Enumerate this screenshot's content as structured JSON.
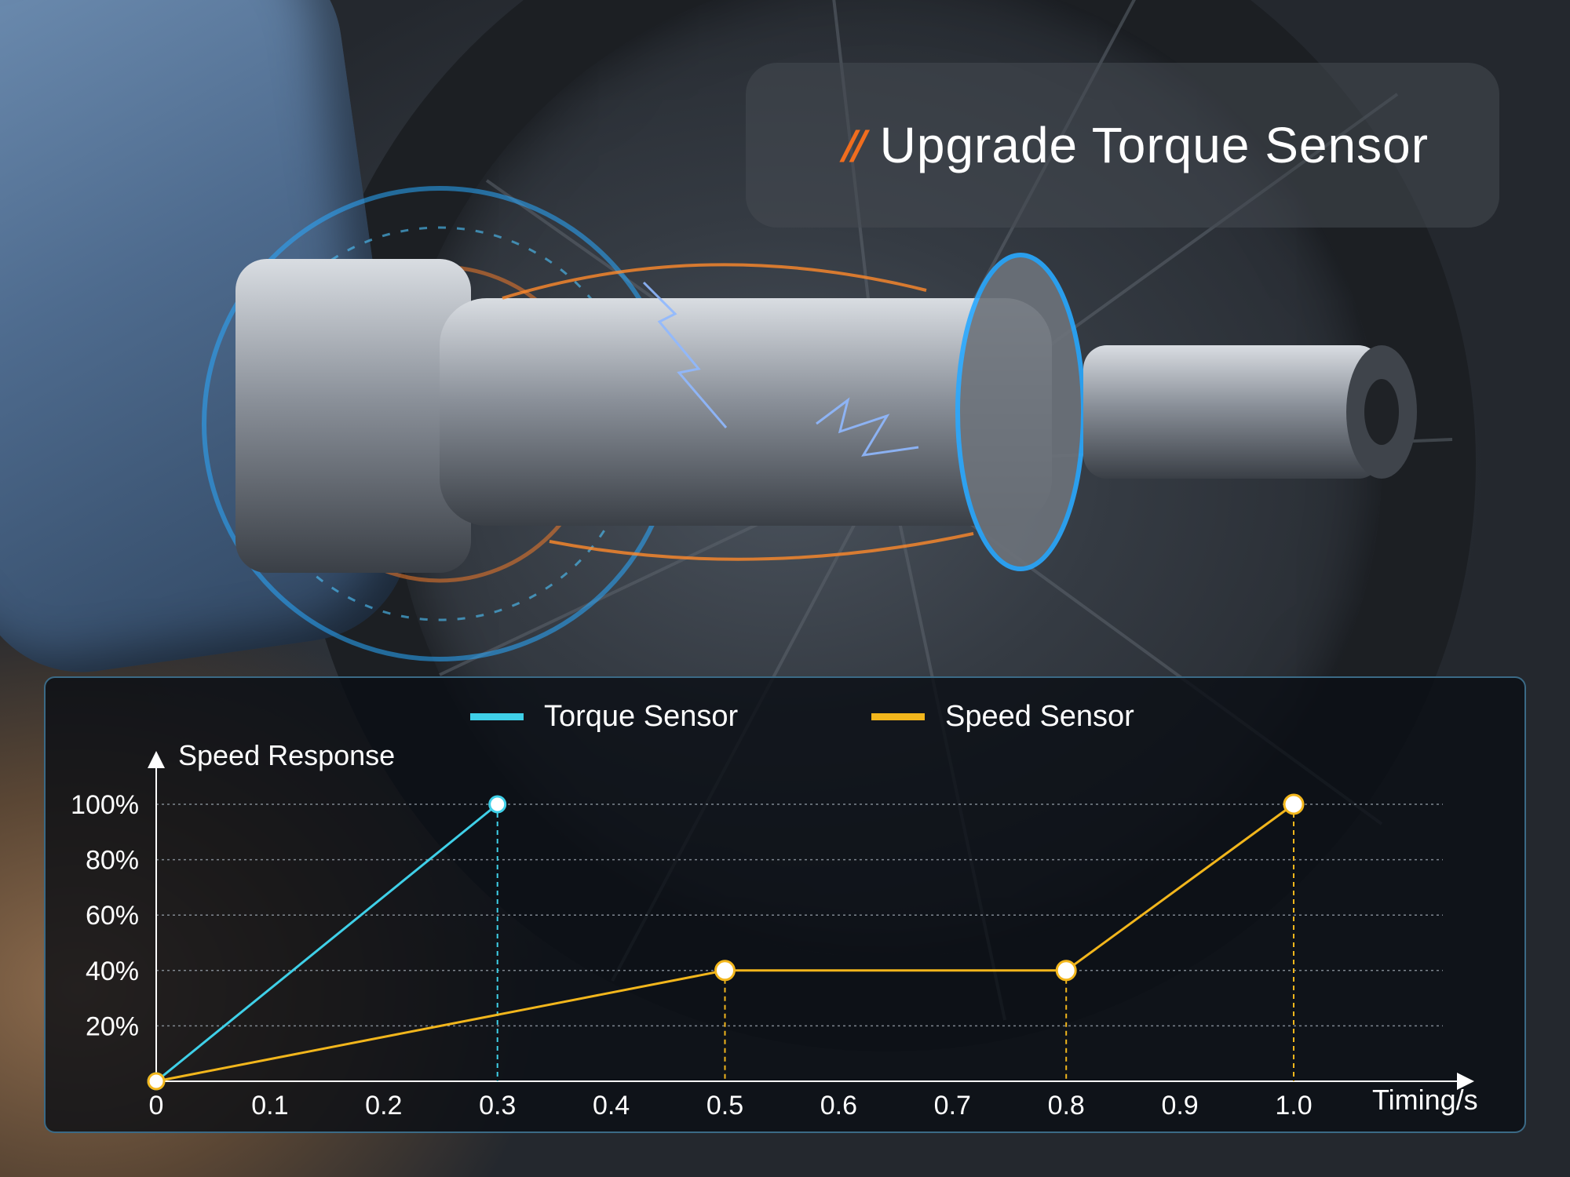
{
  "title": {
    "mark": "//",
    "text": "Upgrade Torque Sensor"
  },
  "colors": {
    "torque": "#3fd0e8",
    "speed": "#f2b61c",
    "accent": "#f06d1e"
  },
  "chart_data": {
    "type": "line",
    "ylabel": "Speed Response",
    "xlabel": "Timing/s",
    "x_ticks": [
      "0",
      "0.1",
      "0.2",
      "0.3",
      "0.4",
      "0.5",
      "0.6",
      "0.7",
      "0.8",
      "0.9",
      "1.0"
    ],
    "y_ticks": [
      "20%",
      "40%",
      "60%",
      "80%",
      "100%"
    ],
    "xlim": [
      0,
      1.0
    ],
    "ylim": [
      0,
      100
    ],
    "grid": true,
    "legend_position": "top",
    "series": [
      {
        "name": "Torque Sensor",
        "color": "#3fd0e8",
        "points": [
          {
            "x": 0,
            "y": 0
          },
          {
            "x": 0.3,
            "y": 100
          }
        ]
      },
      {
        "name": "Speed Sensor",
        "color": "#f2b61c",
        "points": [
          {
            "x": 0,
            "y": 0
          },
          {
            "x": 0.5,
            "y": 40
          },
          {
            "x": 0.8,
            "y": 40
          },
          {
            "x": 1.0,
            "y": 100
          }
        ]
      }
    ]
  }
}
